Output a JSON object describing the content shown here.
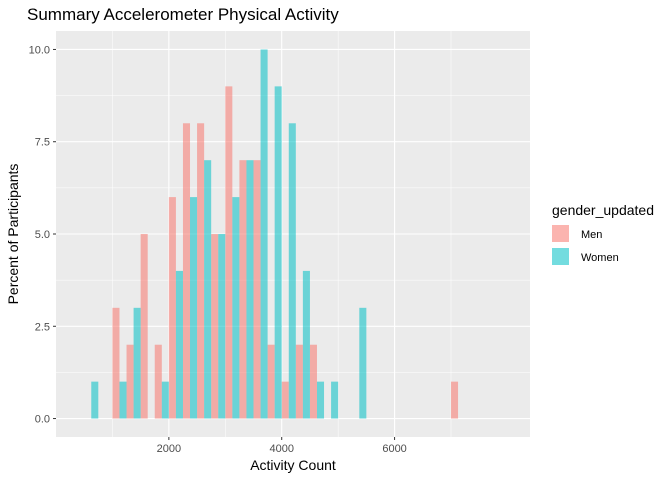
{
  "chart_data": {
    "type": "bar",
    "title": "Summary Accelerometer Physical Activity",
    "xlabel": "Activity Count",
    "ylabel": "Percent of Participants",
    "xlim": [
      0,
      8400
    ],
    "ylim": [
      -0.5,
      10.5
    ],
    "x_ticks": [
      2000,
      4000,
      6000
    ],
    "x_tick_labels": [
      "2000",
      "4000",
      "6000"
    ],
    "y_ticks": [
      0,
      2.5,
      5,
      7.5,
      10
    ],
    "y_tick_labels": [
      "0.0",
      "2.5",
      "5.0",
      "7.5",
      "10.0"
    ],
    "bin_width": 250,
    "grid": true,
    "legend": {
      "title": "gender_updated",
      "position": "right"
    },
    "series": [
      {
        "name": "Men",
        "color": "#F8766D",
        "x": [
          1125,
          1375,
          1625,
          1875,
          2125,
          2375,
          2625,
          2875,
          3125,
          3375,
          3625,
          3875,
          4125,
          4375,
          4625,
          7125
        ],
        "values": [
          3,
          2,
          5,
          2,
          6,
          8,
          8,
          5,
          9,
          7,
          7,
          2,
          1,
          2,
          2,
          1
        ]
      },
      {
        "name": "Women",
        "color": "#00BFC4",
        "x": [
          625,
          1125,
          1375,
          1875,
          2125,
          2375,
          2625,
          2875,
          3125,
          3375,
          3625,
          3875,
          4125,
          4375,
          4625,
          4875,
          5375
        ],
        "values": [
          1,
          1,
          3,
          1,
          4,
          6,
          7,
          5,
          6,
          7,
          10,
          9,
          8,
          4,
          1,
          1,
          3
        ]
      }
    ]
  }
}
